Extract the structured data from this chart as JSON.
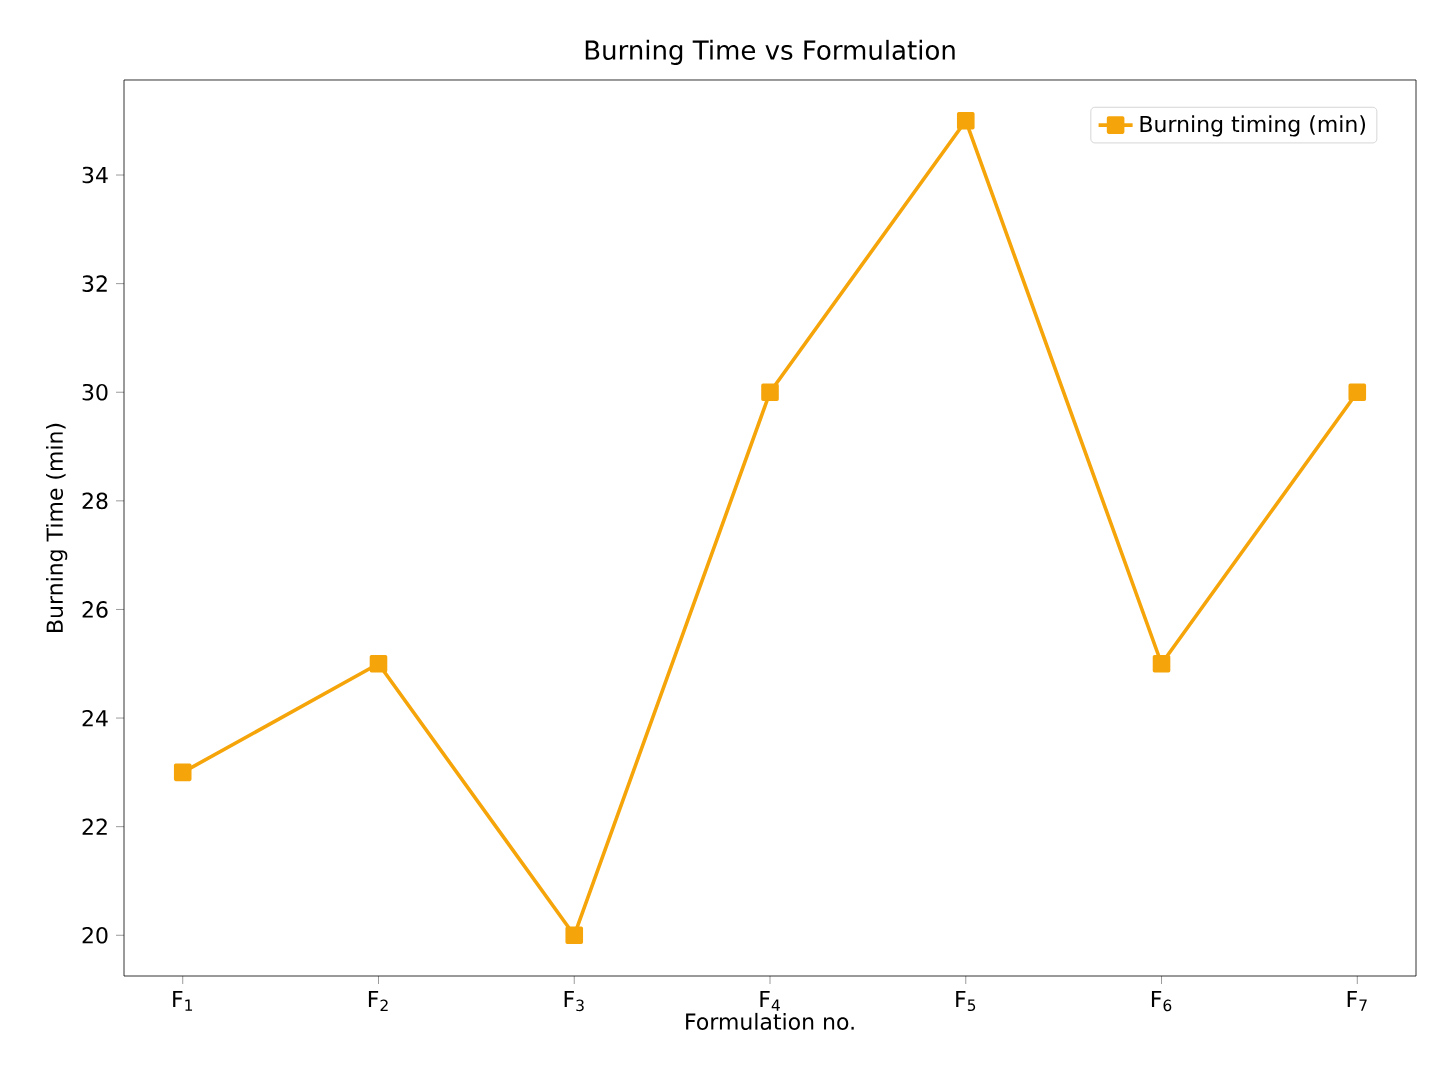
{
  "chart_data": {
    "type": "line",
    "title": "Burning Time vs Formulation",
    "xlabel": "Formulation no.",
    "ylabel": "Burning Time (min)",
    "categories": [
      "F$_{1}$",
      "F$_{2}$",
      "F$_{3}$",
      "F$_{4}$",
      "F$_{5}$",
      "F$_{6}$",
      "F$_{7}$"
    ],
    "series": [
      {
        "name": "Burning timing (min)",
        "color": "#f5a50a",
        "values": [
          23,
          25,
          20,
          30,
          35,
          25,
          30
        ]
      }
    ],
    "ylim": [
      19.25,
      35.75
    ],
    "yticks": [
      20,
      22,
      24,
      26,
      28,
      30,
      32,
      34
    ],
    "marker": "square",
    "line_style": "solid",
    "legend": "top right"
  }
}
